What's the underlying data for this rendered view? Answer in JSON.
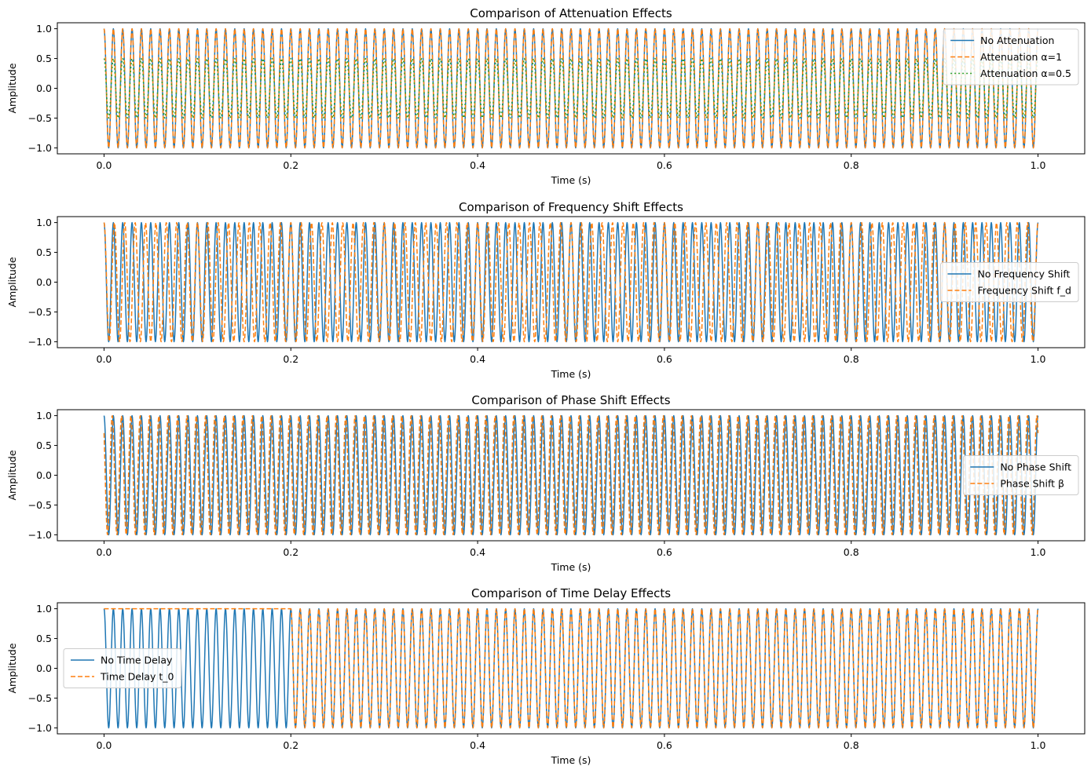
{
  "chart_data": [
    {
      "type": "line",
      "title": "Comparison of Attenuation Effects",
      "xlabel": "Time (s)",
      "ylabel": "Amplitude",
      "xlim": [
        -0.05,
        1.05
      ],
      "ylim": [
        -1.1,
        1.1
      ],
      "xticks": [
        0.0,
        0.2,
        0.4,
        0.6,
        0.8,
        1.0
      ],
      "xtick_labels": [
        "0.0",
        "0.2",
        "0.4",
        "0.6",
        "0.8",
        "1.0"
      ],
      "yticks": [
        1.0,
        0.5,
        0.0,
        -0.5,
        -1.0
      ],
      "ytick_labels": [
        "1.0",
        "0.5",
        "0.0",
        "−0.5",
        "−1.0"
      ],
      "grid": false,
      "legend_position": "top-right",
      "series": [
        {
          "name": "No Attenuation",
          "color": "#1f77b4",
          "style": "solid",
          "kind": "cos",
          "amplitude": 1.0,
          "frequency_hz": 100,
          "phase": 0,
          "delay_s": 0
        },
        {
          "name": "Attenuation α=1",
          "color": "#ff7f0e",
          "style": "dashed",
          "kind": "cos",
          "amplitude": 1.0,
          "frequency_hz": 100,
          "phase": 0,
          "delay_s": 0
        },
        {
          "name": "Attenuation α=0.5",
          "color": "#2ca02c",
          "style": "dotted",
          "kind": "cos",
          "amplitude": 0.5,
          "frequency_hz": 100,
          "phase": 0,
          "delay_s": 0
        }
      ]
    },
    {
      "type": "line",
      "title": "Comparison of Frequency Shift Effects",
      "xlabel": "Time (s)",
      "ylabel": "Amplitude",
      "xlim": [
        -0.05,
        1.05
      ],
      "ylim": [
        -1.1,
        1.1
      ],
      "xticks": [
        0.0,
        0.2,
        0.4,
        0.6,
        0.8,
        1.0
      ],
      "xtick_labels": [
        "0.0",
        "0.2",
        "0.4",
        "0.6",
        "0.8",
        "1.0"
      ],
      "yticks": [
        1.0,
        0.5,
        0.0,
        -0.5,
        -1.0
      ],
      "ytick_labels": [
        "1.0",
        "0.5",
        "0.0",
        "−0.5",
        "−1.0"
      ],
      "grid": false,
      "legend_position": "center-right",
      "series": [
        {
          "name": "No Frequency Shift",
          "color": "#1f77b4",
          "style": "solid",
          "kind": "cos",
          "amplitude": 1.0,
          "frequency_hz": 100,
          "phase": 0,
          "delay_s": 0
        },
        {
          "name": "Frequency Shift f_d",
          "color": "#ff7f0e",
          "style": "dashed",
          "kind": "cos",
          "amplitude": 1.0,
          "frequency_hz": 90,
          "phase": 0,
          "delay_s": 0
        }
      ]
    },
    {
      "type": "line",
      "title": "Comparison of Phase Shift Effects",
      "xlabel": "Time (s)",
      "ylabel": "Amplitude",
      "xlim": [
        -0.05,
        1.05
      ],
      "ylim": [
        -1.1,
        1.1
      ],
      "xticks": [
        0.0,
        0.2,
        0.4,
        0.6,
        0.8,
        1.0
      ],
      "xtick_labels": [
        "0.0",
        "0.2",
        "0.4",
        "0.6",
        "0.8",
        "1.0"
      ],
      "yticks": [
        1.0,
        0.5,
        0.0,
        -0.5,
        -1.0
      ],
      "ytick_labels": [
        "1.0",
        "0.5",
        "0.0",
        "−0.5",
        "−1.0"
      ],
      "grid": false,
      "legend_position": "center-right",
      "series": [
        {
          "name": "No Phase Shift",
          "color": "#1f77b4",
          "style": "solid",
          "kind": "cos",
          "amplitude": 1.0,
          "frequency_hz": 100,
          "phase": 0,
          "delay_s": 0
        },
        {
          "name": "Phase Shift β",
          "color": "#ff7f0e",
          "style": "dashed",
          "kind": "cos",
          "amplitude": 1.0,
          "frequency_hz": 100,
          "phase": 0.785,
          "delay_s": 0
        }
      ]
    },
    {
      "type": "line",
      "title": "Comparison of Time Delay Effects",
      "xlabel": "Time (s)",
      "ylabel": "Amplitude",
      "xlim": [
        -0.05,
        1.05
      ],
      "ylim": [
        -1.1,
        1.1
      ],
      "xticks": [
        0.0,
        0.2,
        0.4,
        0.6,
        0.8,
        1.0
      ],
      "xtick_labels": [
        "0.0",
        "0.2",
        "0.4",
        "0.6",
        "0.8",
        "1.0"
      ],
      "yticks": [
        1.0,
        0.5,
        0.0,
        -0.5,
        -1.0
      ],
      "ytick_labels": [
        "1.0",
        "0.5",
        "0.0",
        "−0.5",
        "−1.0"
      ],
      "grid": false,
      "legend_position": "center-left",
      "series": [
        {
          "name": "No Time Delay",
          "color": "#1f77b4",
          "style": "solid",
          "kind": "cos",
          "amplitude": 1.0,
          "frequency_hz": 100,
          "phase": 0,
          "delay_s": 0
        },
        {
          "name": "Time Delay t_0",
          "color": "#ff7f0e",
          "style": "dashed",
          "kind": "cos",
          "amplitude": 1.0,
          "frequency_hz": 100,
          "phase": 0,
          "delay_s": 0.2
        }
      ]
    }
  ]
}
